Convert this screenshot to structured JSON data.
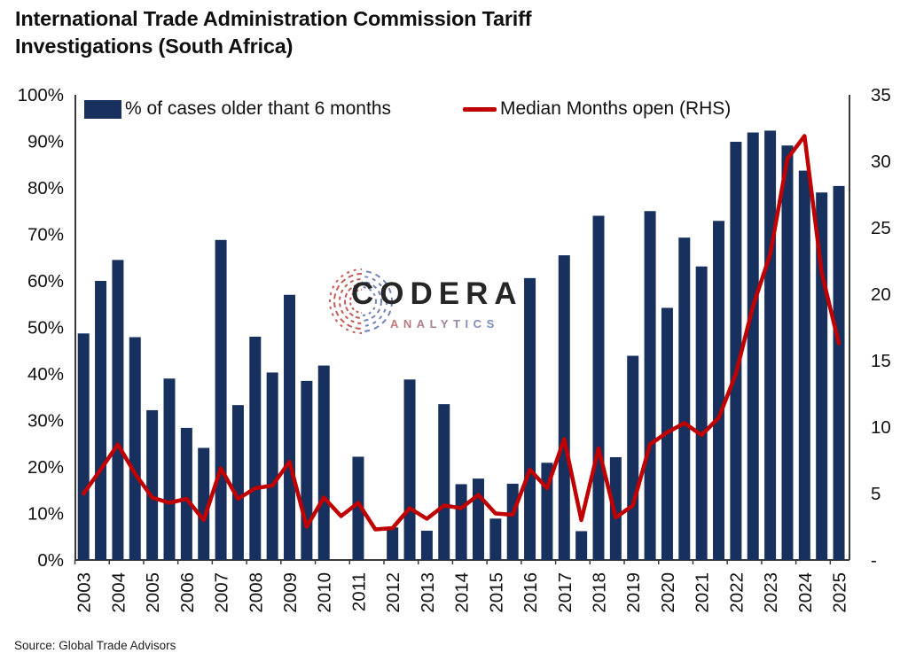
{
  "title": "International Trade Administration Commission Tariff Investigations (South Africa)",
  "legend": {
    "bar_label": "% of cases older thant 6 months",
    "line_label": "Median Months open (RHS)"
  },
  "watermark": {
    "name": "CODERA",
    "subtitle": "ANALYTICS"
  },
  "source": "Source: Global Trade Advisors",
  "colors": {
    "bar": "#17305E",
    "line": "#C00000",
    "axis": "#3a3a3a",
    "text": "#111111"
  },
  "chart_data": {
    "type": "bar",
    "subtype": "bar-plus-line-dual-axis",
    "periods": [
      "2003-H1",
      "2003-H2",
      "2004-H1",
      "2004-H2",
      "2005-H1",
      "2005-H2",
      "2006-H1",
      "2006-H2",
      "2007-H1",
      "2007-H2",
      "2008-H1",
      "2008-H2",
      "2009-H1",
      "2009-H2",
      "2010-H1",
      "2010-H2",
      "2011-H1",
      "2011-H2",
      "2012-H1",
      "2012-H2",
      "2013-H1",
      "2013-H2",
      "2014-H1",
      "2014-H2",
      "2015-H1",
      "2015-H2",
      "2016-H1",
      "2016-H2",
      "2017-H1",
      "2017-H2",
      "2018-H1",
      "2018-H2",
      "2019-H1",
      "2019-H2",
      "2020-H1",
      "2020-H2",
      "2021-H1",
      "2021-H2",
      "2022-H1",
      "2022-H2",
      "2023-H1",
      "2023-H2",
      "2024-H1",
      "2024-H2",
      "2025-H1"
    ],
    "x_tick_labels": [
      "2003",
      "2004",
      "2005",
      "2006",
      "2007",
      "2008",
      "2009",
      "2010",
      "2011",
      "2012",
      "2013",
      "2014",
      "2015",
      "2016",
      "2017",
      "2018",
      "2019",
      "2020",
      "2021",
      "2022",
      "2023",
      "2024",
      "2025"
    ],
    "series": [
      {
        "name": "% of cases older thant 6 months",
        "type": "bar",
        "axis": "left",
        "color": "#17305E",
        "values": [
          48.7,
          60,
          64.5,
          47.9,
          32.2,
          39,
          28.4,
          24.1,
          68.8,
          33.3,
          48,
          40.3,
          57,
          38.5,
          41.8,
          0,
          22.2,
          0,
          7,
          38.8,
          6.3,
          33.5,
          16.3,
          17.5,
          8.9,
          16.4,
          60.6,
          20.9,
          65.5,
          6.2,
          74,
          22.1,
          43.9,
          75,
          54.2,
          69.3,
          63.1,
          72.9,
          89.9,
          91.9,
          92.3,
          89.1,
          83.7,
          79,
          80.4
        ]
      },
      {
        "name": "Median Months open (RHS)",
        "type": "line",
        "axis": "right",
        "color": "#C00000",
        "values": [
          5,
          6.8,
          8.7,
          6.5,
          4.7,
          4.3,
          4.6,
          3,
          6.9,
          4.6,
          5.4,
          5.6,
          7.4,
          2.5,
          4.7,
          3.3,
          4.3,
          2.3,
          2.4,
          3.9,
          3.1,
          4.1,
          3.9,
          4.9,
          3.5,
          3.4,
          6.8,
          5.4,
          9.1,
          3,
          8.4,
          3.2,
          4.1,
          8.7,
          9.6,
          10.3,
          9.4,
          10.7,
          14,
          19.1,
          23,
          30.2,
          31.9,
          21.6,
          16.3
        ]
      }
    ],
    "left_axis": {
      "min": 0,
      "max": 100,
      "tick_step": 10,
      "tick_labels": [
        "100%",
        "90%",
        "80%",
        "70%",
        "60%",
        "50%",
        "40%",
        "30%",
        "20%",
        "10%",
        "0%"
      ]
    },
    "right_axis": {
      "min": 0,
      "max": 35,
      "tick_step": 5,
      "tick_labels": [
        "35",
        "30",
        "25",
        "20",
        "15",
        "10",
        "5",
        "-"
      ]
    },
    "grid": false,
    "legend_position": "top-inside",
    "notes": "No bars shown for 2010-H2 and 2011-H2 (value 0); red line is continuous across all periods."
  }
}
